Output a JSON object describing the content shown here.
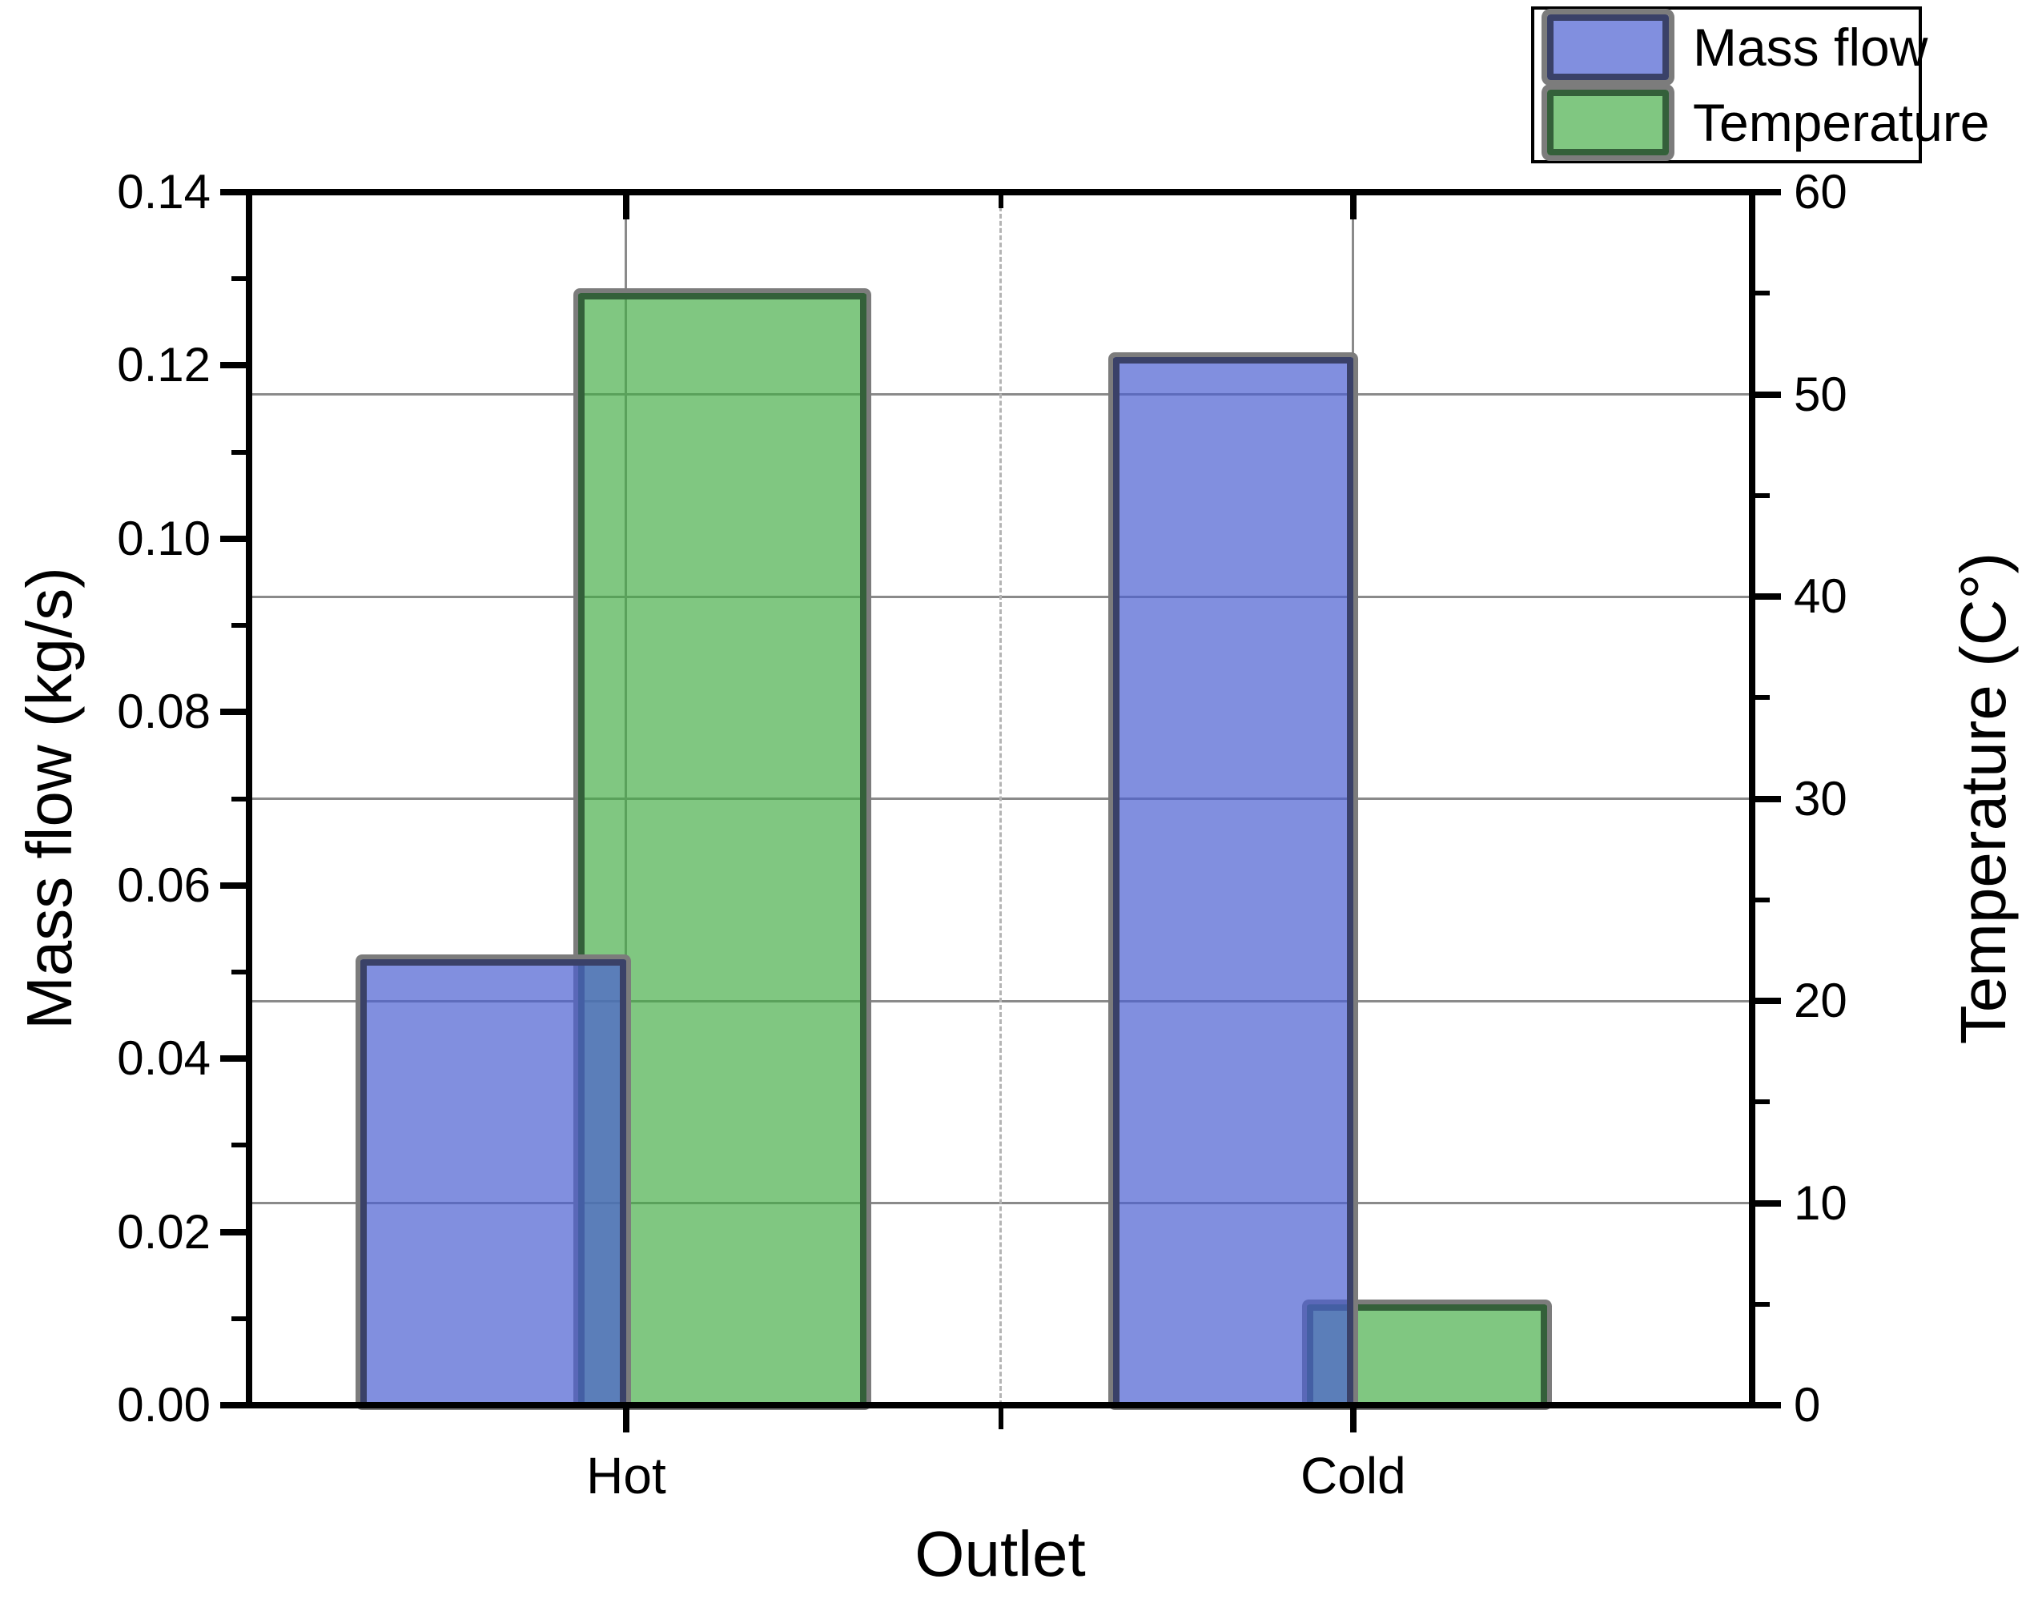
{
  "chart_data": {
    "type": "bar",
    "title": "",
    "categories": [
      "Hot",
      "Cold"
    ],
    "xlabel": "Outlet",
    "left_axis": {
      "label": "Mass flow (kg/s)",
      "min": 0.0,
      "max": 0.14,
      "major_step": 0.02,
      "minor_step": 0.01,
      "tick_decimals": 2
    },
    "right_axis": {
      "label": "Temperature (C°)",
      "min": 0,
      "max": 60,
      "major_step": 10,
      "minor_step": 5,
      "tick_decimals": 0
    },
    "series": [
      {
        "name": "Mass flow",
        "axis": "left",
        "fill_color": "rgba(75,95,210,0.70)",
        "edge_color": "#3a4168",
        "values": [
          0.0515,
          0.121
        ]
      },
      {
        "name": "Temperature",
        "axis": "right",
        "fill_color": "rgba(68,172,70,0.68)",
        "edge_color": "#34603a",
        "values": [
          55,
          5
        ]
      }
    ],
    "legend": {
      "position": "top-right",
      "entries": [
        "Mass flow",
        "Temperature"
      ]
    },
    "grid": {
      "horizontal_lines_at_right_axis_majors": true,
      "vertical_solid_lines_at_categories": true,
      "vertical_dashed_line_at_center": true
    },
    "shadow_color": "#7c7c7c"
  }
}
